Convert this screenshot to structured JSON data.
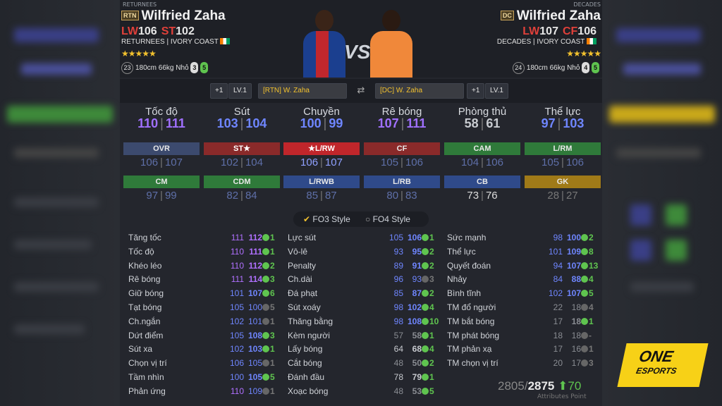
{
  "left_player": {
    "tag": "RETURNEES",
    "badge": "RTN",
    "name": "Wilfried Zaha",
    "pos1": "LW",
    "val1": "106",
    "pos2": "ST",
    "val2": "102",
    "season": "RETURNEES",
    "country": "IVORY COAST",
    "stars": "★★★★★",
    "age": "23",
    "height": "180cm",
    "weight": "66kg",
    "body": "Nhỏ",
    "weak_foot": "3",
    "skill": "5"
  },
  "right_player": {
    "tag": "DECADES",
    "badge": "DC",
    "name": "Wilfried Zaha",
    "pos1": "LW",
    "val1": "107",
    "pos2": "CF",
    "val2": "106",
    "season": "DECADES",
    "country": "IVORY COAST",
    "stars": "★★★★★",
    "age": "24",
    "height": "180cm",
    "weight": "66kg",
    "body": "Nhỏ",
    "weak_foot": "4",
    "skill": "5"
  },
  "vs": "VS",
  "compare": {
    "left_plus": "+1",
    "left_lv": "LV.1",
    "left_sel": "[RTN] W. Zaha",
    "right_sel": "[DC] W. Zaha",
    "right_plus": "+1",
    "right_lv": "LV.1"
  },
  "categories": [
    {
      "t": "Tốc độ",
      "a": "110",
      "b": "111",
      "color": "#a070ff"
    },
    {
      "t": "Sút",
      "a": "103",
      "b": "104",
      "color": "#6f86ff"
    },
    {
      "t": "Chuyền",
      "a": "100",
      "b": "99",
      "color": "#6f86ff"
    },
    {
      "t": "Rê bóng",
      "a": "107",
      "b": "111",
      "color": "#a070ff"
    },
    {
      "t": "Phòng thủ",
      "a": "58",
      "b": "61",
      "color": "#c8cbd0"
    },
    {
      "t": "Thể lực",
      "a": "97",
      "b": "103",
      "color": "#6f86ff"
    }
  ],
  "positions_row1": [
    {
      "p": "OVR",
      "a": "106",
      "b": "107",
      "bg": "#3c4a6e"
    },
    {
      "p": "ST★",
      "a": "102",
      "b": "104",
      "bg": "#8a2a2a"
    },
    {
      "p": "★L/RW",
      "a": "106",
      "b": "107",
      "bg": "#c0262b"
    },
    {
      "p": "CF",
      "a": "105",
      "b": "106",
      "bg": "#8a2a2a"
    },
    {
      "p": "CAM",
      "a": "104",
      "b": "106",
      "bg": "#2f7a3a"
    },
    {
      "p": "L/RM",
      "a": "105",
      "b": "106",
      "bg": "#2f7a3a"
    }
  ],
  "positions_row2": [
    {
      "p": "CM",
      "a": "97",
      "b": "99",
      "bg": "#2f7a3a"
    },
    {
      "p": "CDM",
      "a": "82",
      "b": "84",
      "bg": "#2f7a3a"
    },
    {
      "p": "L/RWB",
      "a": "85",
      "b": "87",
      "bg": "#2f4a8a"
    },
    {
      "p": "L/RB",
      "a": "80",
      "b": "83",
      "bg": "#2f4a8a"
    },
    {
      "p": "CB",
      "a": "73",
      "b": "76",
      "bg": "#2f4a8a"
    },
    {
      "p": "GK",
      "a": "28",
      "b": "27",
      "bg": "#a07a18"
    }
  ],
  "style_tabs": {
    "fo3": "FO3 Style",
    "fo4": "FO4 Style"
  },
  "stats": [
    [
      {
        "l": "Tăng tốc",
        "a": "111",
        "b": "112",
        "d": "1"
      },
      {
        "l": "Tốc độ",
        "a": "110",
        "b": "111",
        "d": "1"
      },
      {
        "l": "Khéo léo",
        "a": "110",
        "b": "112",
        "d": "2"
      },
      {
        "l": "Rê bóng",
        "a": "111",
        "b": "114",
        "d": "3"
      },
      {
        "l": "Giữ bóng",
        "a": "101",
        "b": "107",
        "d": "6"
      },
      {
        "l": "Tạt bóng",
        "a": "105",
        "b": "100",
        "d": "5"
      },
      {
        "l": "Ch.ngắn",
        "a": "102",
        "b": "101",
        "d": "1"
      },
      {
        "l": "Dứt điểm",
        "a": "105",
        "b": "108",
        "d": "3"
      },
      {
        "l": "Sút xa",
        "a": "102",
        "b": "103",
        "d": "1"
      },
      {
        "l": "Chọn vị trí",
        "a": "106",
        "b": "105",
        "d": "1"
      },
      {
        "l": "Tầm nhìn",
        "a": "100",
        "b": "105",
        "d": "5"
      },
      {
        "l": "Phản ứng",
        "a": "110",
        "b": "109",
        "d": "1"
      }
    ],
    [
      {
        "l": "Lực sút",
        "a": "105",
        "b": "106",
        "d": "1"
      },
      {
        "l": "Vô-lê",
        "a": "93",
        "b": "95",
        "d": "2"
      },
      {
        "l": "Penalty",
        "a": "89",
        "b": "91",
        "d": "2"
      },
      {
        "l": "Ch.dài",
        "a": "96",
        "b": "93",
        "d": "3"
      },
      {
        "l": "Đá phạt",
        "a": "85",
        "b": "87",
        "d": "2"
      },
      {
        "l": "Sút xoáy",
        "a": "98",
        "b": "102",
        "d": "4"
      },
      {
        "l": "Thăng bằng",
        "a": "98",
        "b": "108",
        "d": "10"
      },
      {
        "l": "Kèm người",
        "a": "57",
        "b": "58",
        "d": "1"
      },
      {
        "l": "Lấy bóng",
        "a": "64",
        "b": "68",
        "d": "4"
      },
      {
        "l": "Cắt bóng",
        "a": "48",
        "b": "50",
        "d": "2"
      },
      {
        "l": "Đánh đầu",
        "a": "78",
        "b": "79",
        "d": "1"
      },
      {
        "l": "Xoạc bóng",
        "a": "48",
        "b": "53",
        "d": "5"
      }
    ],
    [
      {
        "l": "Sức mạnh",
        "a": "98",
        "b": "100",
        "d": "2"
      },
      {
        "l": "Thể lực",
        "a": "101",
        "b": "109",
        "d": "8"
      },
      {
        "l": "Quyết đoán",
        "a": "94",
        "b": "107",
        "d": "13"
      },
      {
        "l": "Nhảy",
        "a": "84",
        "b": "88",
        "d": "4"
      },
      {
        "l": "Bình tĩnh",
        "a": "102",
        "b": "107",
        "d": "5"
      },
      {
        "l": "TM đổ người",
        "a": "22",
        "b": "18",
        "d": "4"
      },
      {
        "l": "TM bắt bóng",
        "a": "17",
        "b": "18",
        "d": "1"
      },
      {
        "l": "TM phát bóng",
        "a": "18",
        "b": "18",
        "d": "-"
      },
      {
        "l": "TM phản xạ",
        "a": "17",
        "b": "16",
        "d": "1"
      },
      {
        "l": "TM chọn vị trí",
        "a": "20",
        "b": "17",
        "d": "3"
      }
    ]
  ],
  "total": {
    "a": "2805",
    "b": "2875",
    "d": "70",
    "label": "Attributes Point"
  },
  "logo": {
    "line1": "ONE",
    "line2": "ESPORTS"
  }
}
